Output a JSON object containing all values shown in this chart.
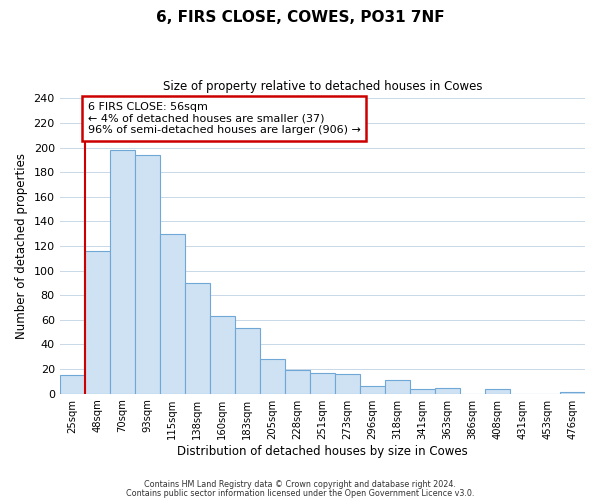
{
  "title": "6, FIRS CLOSE, COWES, PO31 7NF",
  "subtitle": "Size of property relative to detached houses in Cowes",
  "xlabel": "Distribution of detached houses by size in Cowes",
  "ylabel": "Number of detached properties",
  "bar_labels": [
    "25sqm",
    "48sqm",
    "70sqm",
    "93sqm",
    "115sqm",
    "138sqm",
    "160sqm",
    "183sqm",
    "205sqm",
    "228sqm",
    "251sqm",
    "273sqm",
    "296sqm",
    "318sqm",
    "341sqm",
    "363sqm",
    "386sqm",
    "408sqm",
    "431sqm",
    "453sqm",
    "476sqm"
  ],
  "bar_values": [
    15,
    116,
    198,
    194,
    130,
    90,
    63,
    53,
    28,
    19,
    17,
    16,
    6,
    11,
    4,
    5,
    0,
    4,
    0,
    0,
    1
  ],
  "bar_color": "#cfe2f3",
  "bar_edge_color": "#6fa8d6",
  "highlight_line_color": "#cc0000",
  "ylim": [
    0,
    240
  ],
  "yticks": [
    0,
    20,
    40,
    60,
    80,
    100,
    120,
    140,
    160,
    180,
    200,
    220,
    240
  ],
  "annotation_line1": "6 FIRS CLOSE: 56sqm",
  "annotation_line2": "← 4% of detached houses are smaller (37)",
  "annotation_line3": "96% of semi-detached houses are larger (906) →",
  "footer_line1": "Contains HM Land Registry data © Crown copyright and database right 2024.",
  "footer_line2": "Contains public sector information licensed under the Open Government Licence v3.0.",
  "background_color": "#ffffff",
  "grid_color": "#c8d8e8"
}
